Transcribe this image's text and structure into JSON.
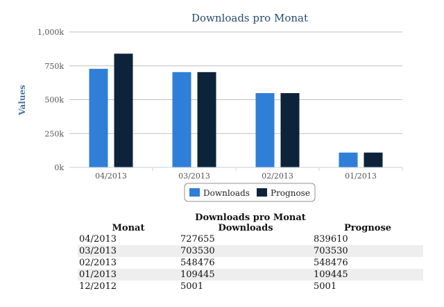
{
  "chart_data": {
    "type": "bar",
    "title": "Downloads pro Monat",
    "ylabel": "Values",
    "xlabel": "",
    "categories": [
      "04/2013",
      "03/2013",
      "02/2013",
      "01/2013"
    ],
    "series": [
      {
        "name": "Downloads",
        "color": "#2f7ed8",
        "values": [
          727655,
          703530,
          548476,
          109445
        ]
      },
      {
        "name": "Prognose",
        "color": "#0d233a",
        "values": [
          839610,
          703530,
          548476,
          109445
        ]
      }
    ],
    "ylim": [
      0,
      1000000
    ],
    "yticks": [
      0,
      250000,
      500000,
      750000,
      1000000
    ],
    "ytick_labels": [
      "0k",
      "250k",
      "500k",
      "750k",
      "1,000k"
    ],
    "grid": true,
    "legend": "bottom-center"
  },
  "table": {
    "caption": "Downloads pro Monat",
    "headers": [
      "Monat",
      "Downloads",
      "Prognose"
    ],
    "rows": [
      [
        "04/2013",
        "727655",
        "839610"
      ],
      [
        "03/2013",
        "703530",
        "703530"
      ],
      [
        "02/2013",
        "548476",
        "548476"
      ],
      [
        "01/2013",
        "109445",
        "109445"
      ],
      [
        "12/2012",
        "5001",
        "5001"
      ]
    ]
  }
}
